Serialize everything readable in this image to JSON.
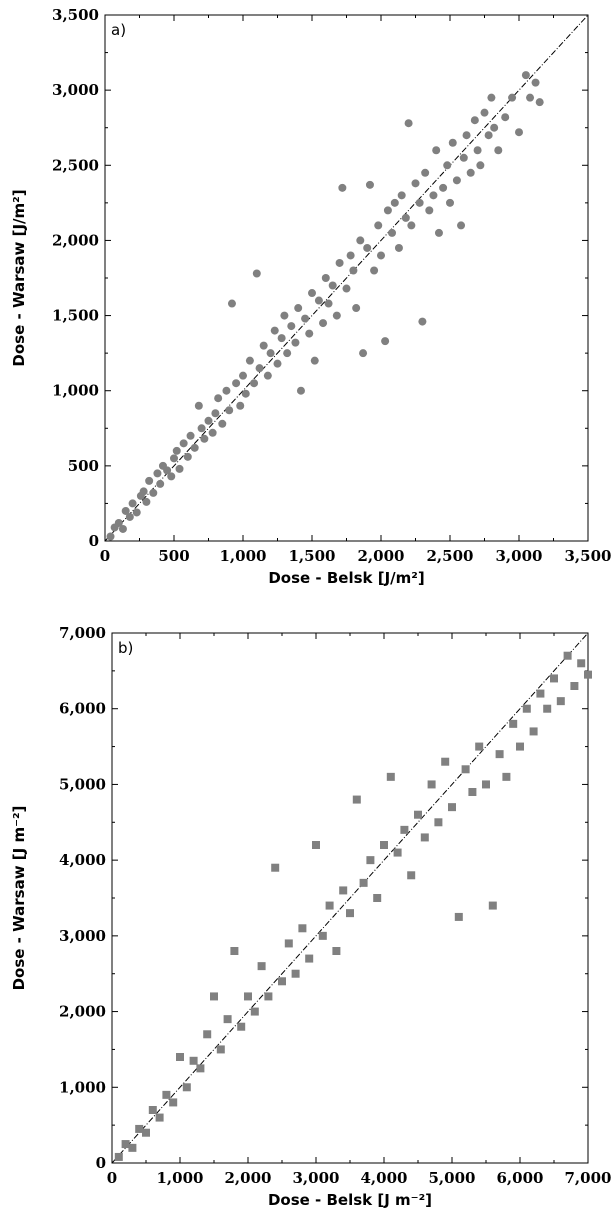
{
  "chart_data": [
    {
      "type": "scatter",
      "panel_label": "a)",
      "xlabel": "Dose - Belsk [J/m²]",
      "ylabel": "Dose - Warsaw [J/m²]",
      "xlim": [
        0,
        3500
      ],
      "ylim": [
        0,
        3500
      ],
      "xticks": [
        "0",
        "500",
        "1,000",
        "1,500",
        "2,000",
        "2,500",
        "3,000",
        "3,500"
      ],
      "yticks": [
        "0",
        "500",
        "1,000",
        "1,500",
        "2,000",
        "2,500",
        "3,000",
        "3,500"
      ],
      "marker": "circle",
      "marker_color": "#808080",
      "reference_line": "1:1",
      "series": [
        {
          "points": [
            [
              40,
              30
            ],
            [
              70,
              90
            ],
            [
              100,
              120
            ],
            [
              130,
              80
            ],
            [
              150,
              200
            ],
            [
              180,
              160
            ],
            [
              200,
              250
            ],
            [
              230,
              190
            ],
            [
              260,
              300
            ],
            [
              280,
              330
            ],
            [
              300,
              260
            ],
            [
              320,
              400
            ],
            [
              350,
              320
            ],
            [
              380,
              450
            ],
            [
              400,
              380
            ],
            [
              420,
              500
            ],
            [
              450,
              470
            ],
            [
              480,
              430
            ],
            [
              500,
              550
            ],
            [
              520,
              600
            ],
            [
              540,
              480
            ],
            [
              570,
              650
            ],
            [
              600,
              560
            ],
            [
              620,
              700
            ],
            [
              650,
              620
            ],
            [
              680,
              900
            ],
            [
              700,
              750
            ],
            [
              720,
              680
            ],
            [
              750,
              800
            ],
            [
              780,
              720
            ],
            [
              800,
              850
            ],
            [
              820,
              950
            ],
            [
              850,
              780
            ],
            [
              880,
              1000
            ],
            [
              900,
              870
            ],
            [
              920,
              1580
            ],
            [
              950,
              1050
            ],
            [
              980,
              900
            ],
            [
              1000,
              1100
            ],
            [
              1020,
              980
            ],
            [
              1050,
              1200
            ],
            [
              1080,
              1050
            ],
            [
              1100,
              1780
            ],
            [
              1120,
              1150
            ],
            [
              1150,
              1300
            ],
            [
              1180,
              1100
            ],
            [
              1200,
              1250
            ],
            [
              1230,
              1400
            ],
            [
              1250,
              1180
            ],
            [
              1280,
              1350
            ],
            [
              1300,
              1500
            ],
            [
              1320,
              1250
            ],
            [
              1350,
              1430
            ],
            [
              1380,
              1320
            ],
            [
              1400,
              1550
            ],
            [
              1420,
              1000
            ],
            [
              1450,
              1480
            ],
            [
              1480,
              1380
            ],
            [
              1500,
              1650
            ],
            [
              1520,
              1200
            ],
            [
              1550,
              1600
            ],
            [
              1580,
              1450
            ],
            [
              1600,
              1750
            ],
            [
              1620,
              1580
            ],
            [
              1650,
              1700
            ],
            [
              1680,
              1500
            ],
            [
              1700,
              1850
            ],
            [
              1720,
              2350
            ],
            [
              1750,
              1680
            ],
            [
              1780,
              1900
            ],
            [
              1800,
              1800
            ],
            [
              1820,
              1550
            ],
            [
              1850,
              2000
            ],
            [
              1870,
              1250
            ],
            [
              1900,
              1950
            ],
            [
              1920,
              2370
            ],
            [
              1950,
              1800
            ],
            [
              1980,
              2100
            ],
            [
              2000,
              1900
            ],
            [
              2030,
              1330
            ],
            [
              2050,
              2200
            ],
            [
              2080,
              2050
            ],
            [
              2100,
              2250
            ],
            [
              2130,
              1950
            ],
            [
              2150,
              2300
            ],
            [
              2180,
              2150
            ],
            [
              2200,
              2780
            ],
            [
              2220,
              2100
            ],
            [
              2250,
              2380
            ],
            [
              2280,
              2250
            ],
            [
              2300,
              1460
            ],
            [
              2320,
              2450
            ],
            [
              2350,
              2200
            ],
            [
              2380,
              2300
            ],
            [
              2400,
              2600
            ],
            [
              2420,
              2050
            ],
            [
              2450,
              2350
            ],
            [
              2480,
              2500
            ],
            [
              2500,
              2250
            ],
            [
              2520,
              2650
            ],
            [
              2550,
              2400
            ],
            [
              2580,
              2100
            ],
            [
              2600,
              2550
            ],
            [
              2620,
              2700
            ],
            [
              2650,
              2450
            ],
            [
              2680,
              2800
            ],
            [
              2700,
              2600
            ],
            [
              2720,
              2500
            ],
            [
              2750,
              2850
            ],
            [
              2780,
              2700
            ],
            [
              2800,
              2950
            ],
            [
              2820,
              2750
            ],
            [
              2850,
              2600
            ],
            [
              2900,
              2820
            ],
            [
              2950,
              2950
            ],
            [
              3000,
              2720
            ],
            [
              3050,
              3100
            ],
            [
              3080,
              2950
            ],
            [
              3120,
              3050
            ],
            [
              3150,
              2920
            ]
          ]
        }
      ]
    },
    {
      "type": "scatter",
      "panel_label": "b)",
      "xlabel": "Dose - Belsk [J m⁻²]",
      "ylabel": "Dose - Warsaw [J m⁻²]",
      "xlim": [
        0,
        7000
      ],
      "ylim": [
        0,
        7000
      ],
      "xticks": [
        "0",
        "1,000",
        "2,000",
        "3,000",
        "4,000",
        "5,000",
        "6,000",
        "7,000"
      ],
      "yticks": [
        "0",
        "1,000",
        "2,000",
        "3,000",
        "4,000",
        "5,000",
        "6,000",
        "7,000"
      ],
      "marker": "square",
      "marker_color": "#808080",
      "reference_line": "1:1",
      "series": [
        {
          "points": [
            [
              100,
              80
            ],
            [
              200,
              250
            ],
            [
              300,
              200
            ],
            [
              400,
              450
            ],
            [
              500,
              400
            ],
            [
              600,
              700
            ],
            [
              700,
              600
            ],
            [
              800,
              900
            ],
            [
              900,
              800
            ],
            [
              1000,
              1400
            ],
            [
              1100,
              1000
            ],
            [
              1200,
              1350
            ],
            [
              1300,
              1250
            ],
            [
              1400,
              1700
            ],
            [
              1500,
              2200
            ],
            [
              1600,
              1500
            ],
            [
              1700,
              1900
            ],
            [
              1800,
              2800
            ],
            [
              1900,
              1800
            ],
            [
              2000,
              2200
            ],
            [
              2100,
              2000
            ],
            [
              2200,
              2600
            ],
            [
              2300,
              2200
            ],
            [
              2400,
              3900
            ],
            [
              2500,
              2400
            ],
            [
              2600,
              2900
            ],
            [
              2700,
              2500
            ],
            [
              2800,
              3100
            ],
            [
              2900,
              2700
            ],
            [
              3000,
              4200
            ],
            [
              3100,
              3000
            ],
            [
              3200,
              3400
            ],
            [
              3300,
              2800
            ],
            [
              3400,
              3600
            ],
            [
              3500,
              3300
            ],
            [
              3600,
              4800
            ],
            [
              3700,
              3700
            ],
            [
              3800,
              4000
            ],
            [
              3900,
              3500
            ],
            [
              4000,
              4200
            ],
            [
              4100,
              5100
            ],
            [
              4200,
              4100
            ],
            [
              4300,
              4400
            ],
            [
              4400,
              3800
            ],
            [
              4500,
              4600
            ],
            [
              4600,
              4300
            ],
            [
              4700,
              5000
            ],
            [
              4800,
              4500
            ],
            [
              4900,
              5300
            ],
            [
              5000,
              4700
            ],
            [
              5100,
              3250
            ],
            [
              5200,
              5200
            ],
            [
              5300,
              4900
            ],
            [
              5400,
              5500
            ],
            [
              5500,
              5000
            ],
            [
              5600,
              3400
            ],
            [
              5700,
              5400
            ],
            [
              5800,
              5100
            ],
            [
              5900,
              5800
            ],
            [
              6000,
              5500
            ],
            [
              6100,
              6000
            ],
            [
              6200,
              5700
            ],
            [
              6300,
              6200
            ],
            [
              6400,
              6000
            ],
            [
              6500,
              6400
            ],
            [
              6600,
              6100
            ],
            [
              6700,
              6700
            ],
            [
              6800,
              6300
            ],
            [
              6900,
              6600
            ],
            [
              7000,
              6450
            ]
          ]
        }
      ]
    }
  ]
}
